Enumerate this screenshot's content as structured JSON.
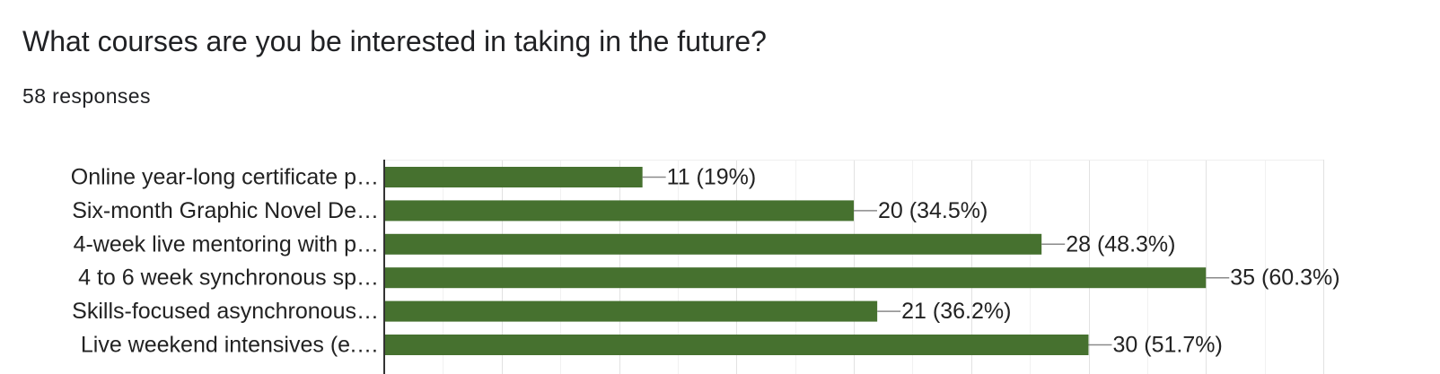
{
  "header": {
    "title": "What courses are you be interested in taking in the future?",
    "responses": "58 responses"
  },
  "chart_data": {
    "type": "bar",
    "orientation": "horizontal",
    "categories": [
      "Online year-long certificate p…",
      "Six-month Graphic Novel De…",
      "4-week live mentoring with p…",
      "4 to 6 week synchronous sp…",
      "Skills-focused asynchronous…",
      "Live weekend intensives (e.…"
    ],
    "values": [
      11,
      20,
      28,
      35,
      21,
      30
    ],
    "value_labels": [
      "11 (19%)",
      "20 (34.5%)",
      "28 (48.3%)",
      "35 (60.3%)",
      "21 (36.2%)",
      "30 (51.7%)"
    ],
    "xlim": [
      0,
      40
    ],
    "grid": true,
    "legend": "none",
    "bar_color": "#46712f"
  }
}
